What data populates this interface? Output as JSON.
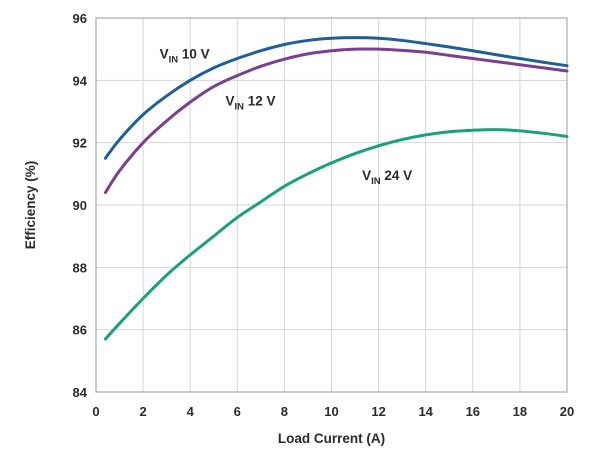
{
  "chart_data": {
    "type": "line",
    "title": "",
    "xlabel": "Load Current (A)",
    "ylabel": "Efficiency (%)",
    "xlim": [
      0,
      20
    ],
    "ylim": [
      84,
      96
    ],
    "xticks": [
      0,
      2,
      4,
      6,
      8,
      10,
      12,
      14,
      16,
      18,
      20
    ],
    "yticks": [
      84,
      86,
      88,
      90,
      92,
      94,
      96
    ],
    "grid": true,
    "legend": "inline labels",
    "series": [
      {
        "label_main": "V",
        "label_sub": "IN",
        "label_rest": " 10 V",
        "color": "#1f5f96",
        "x": [
          0.4,
          1,
          2,
          3,
          4,
          5,
          6,
          7,
          8,
          9,
          10,
          11,
          12,
          13,
          14,
          15,
          16,
          17,
          18,
          19,
          20
        ],
        "y": [
          91.5,
          92.1,
          92.9,
          93.5,
          94.0,
          94.4,
          94.7,
          94.95,
          95.15,
          95.28,
          95.35,
          95.37,
          95.35,
          95.28,
          95.18,
          95.07,
          94.95,
          94.82,
          94.7,
          94.58,
          94.47
        ]
      },
      {
        "label_main": "V",
        "label_sub": "IN",
        "label_rest": " 12 V",
        "color": "#7a3f8f",
        "x": [
          0.4,
          1,
          2,
          3,
          4,
          5,
          6,
          7,
          8,
          9,
          10,
          11,
          12,
          13,
          14,
          15,
          16,
          17,
          18,
          19,
          20
        ],
        "y": [
          90.4,
          91.1,
          92.0,
          92.7,
          93.3,
          93.8,
          94.15,
          94.45,
          94.68,
          94.85,
          94.95,
          95.0,
          95.0,
          94.96,
          94.9,
          94.8,
          94.7,
          94.6,
          94.5,
          94.4,
          94.3
        ]
      },
      {
        "label_main": "V",
        "label_sub": "IN",
        "label_rest": " 24 V",
        "color": "#1aa17b",
        "x": [
          0.4,
          1,
          2,
          3,
          4,
          5,
          6,
          7,
          8,
          9,
          10,
          11,
          12,
          13,
          14,
          15,
          16,
          17,
          18,
          19,
          20
        ],
        "y": [
          85.7,
          86.2,
          87.0,
          87.75,
          88.4,
          89.0,
          89.6,
          90.1,
          90.6,
          91.0,
          91.35,
          91.65,
          91.9,
          92.1,
          92.25,
          92.35,
          92.4,
          92.42,
          92.38,
          92.3,
          92.2
        ]
      }
    ]
  }
}
